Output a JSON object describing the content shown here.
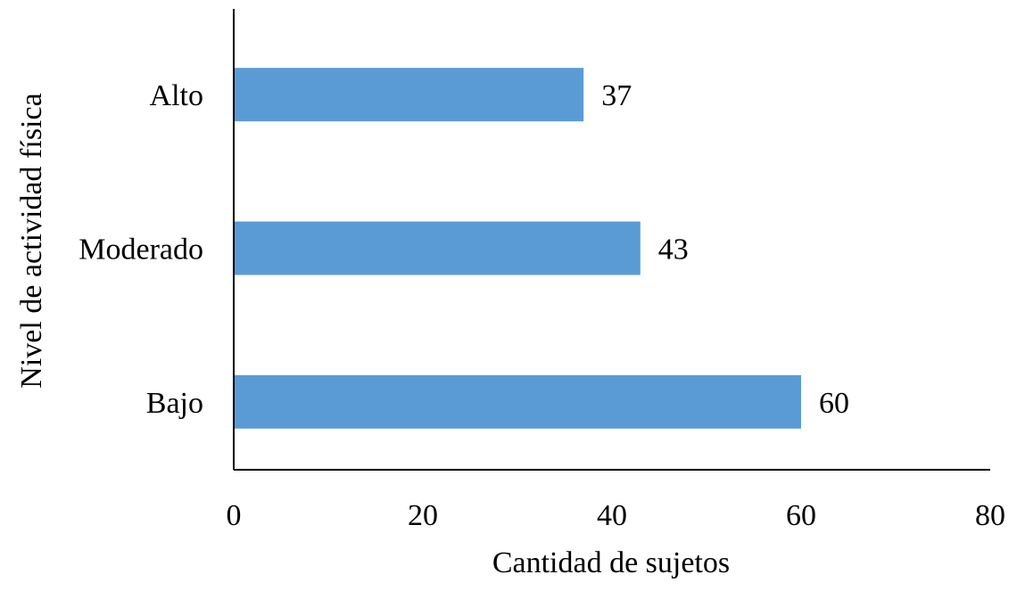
{
  "chart_data": {
    "type": "bar",
    "orientation": "horizontal",
    "categories": [
      "Alto",
      "Moderado",
      "Bajo"
    ],
    "series": [
      {
        "values": [
          37,
          43,
          60
        ],
        "color": "#5B9BD5"
      }
    ],
    "data_labels": [
      "37",
      "43",
      "60"
    ],
    "xlabel": "Cantidad de sujetos",
    "ylabel": "Nivel de actividad física",
    "xlim": [
      0,
      80
    ],
    "xticks": [
      0,
      20,
      40,
      60,
      80
    ],
    "xtick_labels": [
      "0",
      "20",
      "40",
      "60",
      "80"
    ],
    "grid": false,
    "legend": "none"
  }
}
